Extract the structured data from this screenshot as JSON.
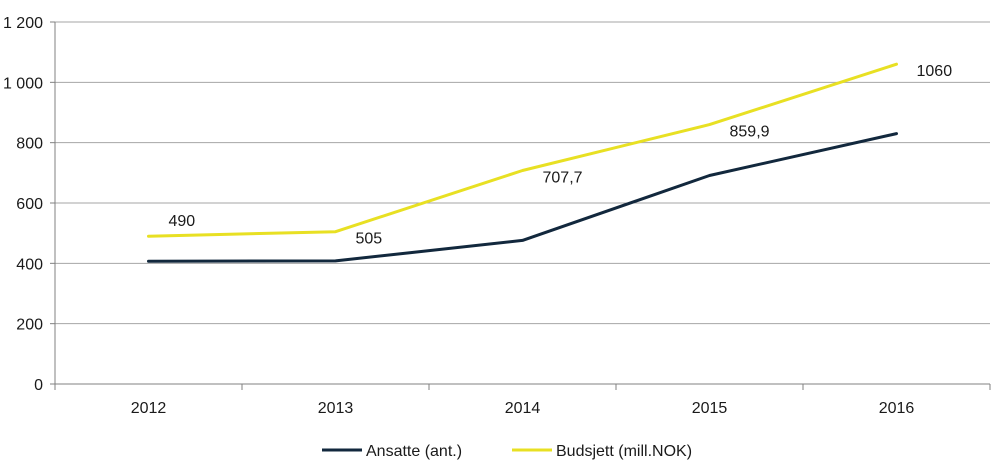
{
  "chart_data": {
    "type": "line",
    "title": "",
    "xlabel": "",
    "ylabel": "",
    "categories": [
      "2012",
      "2013",
      "2014",
      "2015",
      "2016"
    ],
    "ylim": [
      0,
      1200
    ],
    "yticks": [
      0,
      200,
      400,
      600,
      800,
      1000,
      1200
    ],
    "ytick_labels": [
      "0",
      "200",
      "400",
      "600",
      "800",
      "1 000",
      "1 200"
    ],
    "grid": true,
    "legend_position": "bottom",
    "series": [
      {
        "name": "Ansatte (ant.)",
        "color": "#12283d",
        "values": [
          407,
          408,
          476,
          691,
          830
        ],
        "data_labels": null
      },
      {
        "name": "Budsjett (mill.NOK)",
        "color": "#e8e023",
        "values": [
          490,
          505,
          707.7,
          859.9,
          1060
        ],
        "data_labels": [
          "490",
          "505",
          "707,7",
          "859,9",
          "1060"
        ]
      }
    ]
  }
}
